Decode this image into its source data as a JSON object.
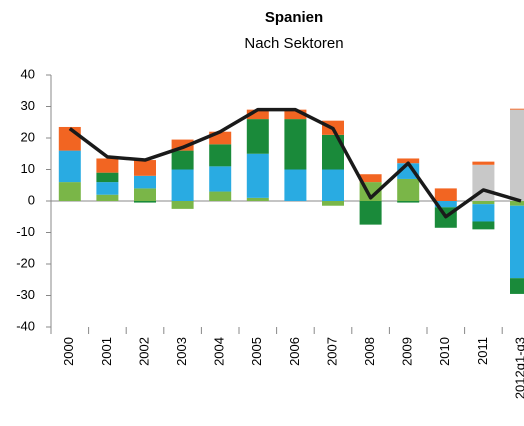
{
  "chart_data": {
    "type": "bar",
    "stacked": true,
    "title": "Spanien",
    "subtitle": "Nach Sektoren",
    "categories": [
      "2000",
      "2001",
      "2002",
      "2003",
      "2004",
      "2005",
      "2006",
      "2007",
      "2008",
      "2009",
      "2010",
      "2011",
      "2012q1-q3"
    ],
    "series": [
      {
        "color": "#7ab648",
        "values": [
          6,
          2,
          4,
          -2.5,
          3,
          1,
          0,
          -1.5,
          6,
          7,
          0,
          -1,
          -1.5
        ]
      },
      {
        "color": "#29abe2",
        "values": [
          10,
          4,
          4,
          10,
          8,
          14,
          10,
          10,
          0,
          5,
          -2,
          -5.5,
          -23
        ]
      },
      {
        "color": "#1a8a3a",
        "values": [
          0,
          3,
          -0.5,
          6,
          7,
          11,
          16,
          11,
          -7.5,
          -0.5,
          -6.5,
          -2.5,
          -5
        ]
      },
      {
        "color": "#c8c8c8",
        "values": [
          0,
          0,
          0,
          0,
          0,
          0,
          0,
          0,
          0,
          0,
          0,
          11.5,
          29
        ]
      },
      {
        "color": "#f26522",
        "values": [
          7.5,
          4.5,
          5,
          3.5,
          4,
          3,
          3,
          4.5,
          2.5,
          1.5,
          4,
          1,
          0.3
        ]
      },
      {
        "type": "line",
        "color": "#1a1a1a",
        "values": [
          23,
          14,
          13,
          17,
          22,
          29,
          29,
          23,
          1,
          12,
          -5,
          3.5,
          0
        ]
      }
    ],
    "ylim": [
      -40,
      40
    ],
    "yticks": [
      -40,
      -30,
      -20,
      -10,
      0,
      10,
      20,
      30,
      40
    ]
  }
}
